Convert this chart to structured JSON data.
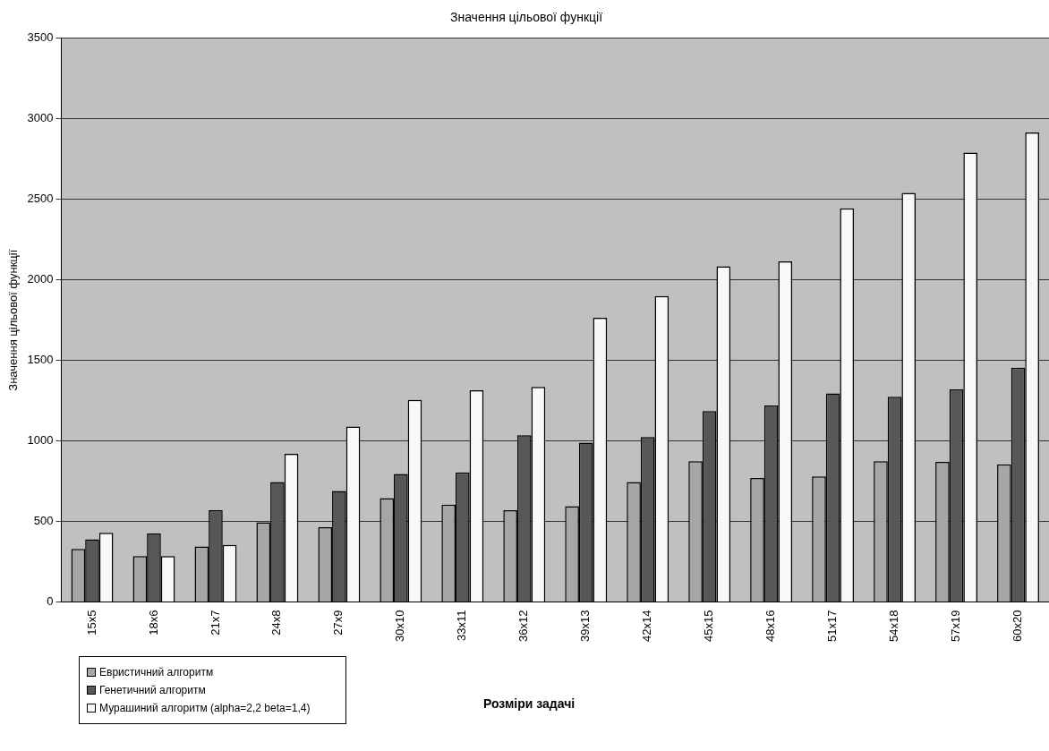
{
  "chart_data": {
    "type": "bar",
    "title": "Значення цільової функції",
    "xlabel": "Розміри задачі",
    "ylabel": "Значення цільової функції",
    "categories": [
      "15x5",
      "18x6",
      "21x7",
      "24x8",
      "27x9",
      "30x10",
      "33x11",
      "36x12",
      "39x13",
      "42x14",
      "45x15",
      "48x16",
      "51x17",
      "54x18",
      "57x19",
      "60x20"
    ],
    "series": [
      {
        "name": "Евристичний алгоритм",
        "color": "#a6a6a6",
        "values": [
          330,
          285,
          345,
          495,
          465,
          645,
          605,
          570,
          595,
          745,
          875,
          770,
          780,
          875,
          870,
          855
        ]
      },
      {
        "name": "Генетичний  алгоритм",
        "color": "#575757",
        "values": [
          390,
          425,
          570,
          745,
          690,
          795,
          805,
          1035,
          990,
          1025,
          1185,
          1220,
          1295,
          1275,
          1320,
          1455
        ]
      },
      {
        "name": "Мурашиний алгоритм (alpha=2,2 beta=1,4)",
        "color": "#f8f8f8",
        "values": [
          430,
          285,
          355,
          920,
          1090,
          1255,
          1315,
          1335,
          1765,
          1900,
          2085,
          2115,
          2445,
          2540,
          2790,
          2915
        ]
      }
    ],
    "ylim": [
      0,
      3500
    ],
    "yticks": [
      0,
      500,
      1000,
      1500,
      2000,
      2500,
      3000,
      3500
    ],
    "grid": "y",
    "legend": "bottom left"
  }
}
